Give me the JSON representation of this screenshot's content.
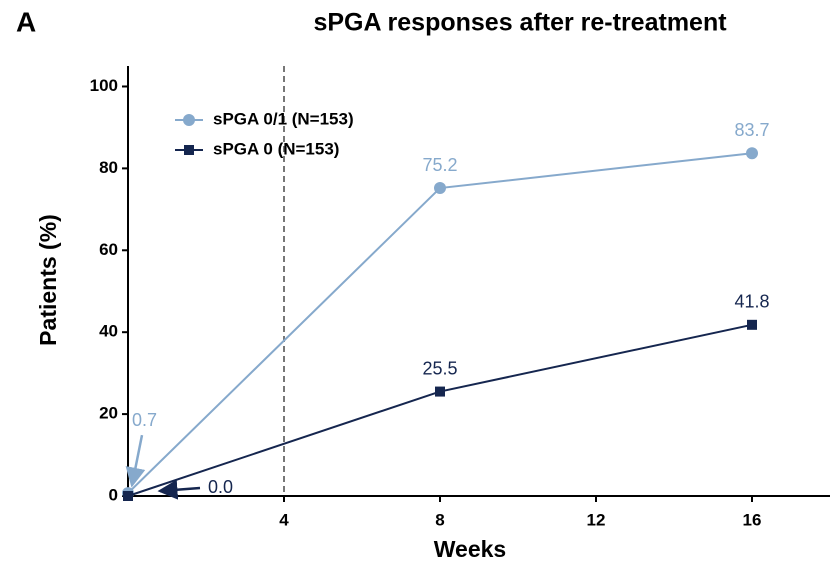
{
  "chart_data": {
    "type": "line",
    "panel_label": "A",
    "title": "sPGA responses after re-treatment",
    "x_label": "Weeks",
    "y_label": "Patients (%)",
    "x": [
      0,
      8,
      16
    ],
    "series": [
      {
        "name": "sPGA 0/1 (N=153)",
        "color": "#86a9cc",
        "marker": "circle",
        "values": [
          0.7,
          75.2,
          83.7
        ],
        "value_labels": [
          "0.7",
          "75.2",
          "83.7"
        ]
      },
      {
        "name": "sPGA 0 (N=153)",
        "color": "#15264f",
        "marker": "square",
        "values": [
          0.0,
          25.5,
          41.8
        ],
        "value_labels": [
          "0.0",
          "25.5",
          "41.8"
        ]
      }
    ],
    "xlim": [
      0,
      18
    ],
    "xticks": [
      4,
      8,
      12,
      16
    ],
    "ylim": [
      0,
      105
    ],
    "yticks": [
      0,
      20,
      40,
      60,
      80,
      100
    ],
    "vline": 4,
    "legend": "upper left"
  }
}
